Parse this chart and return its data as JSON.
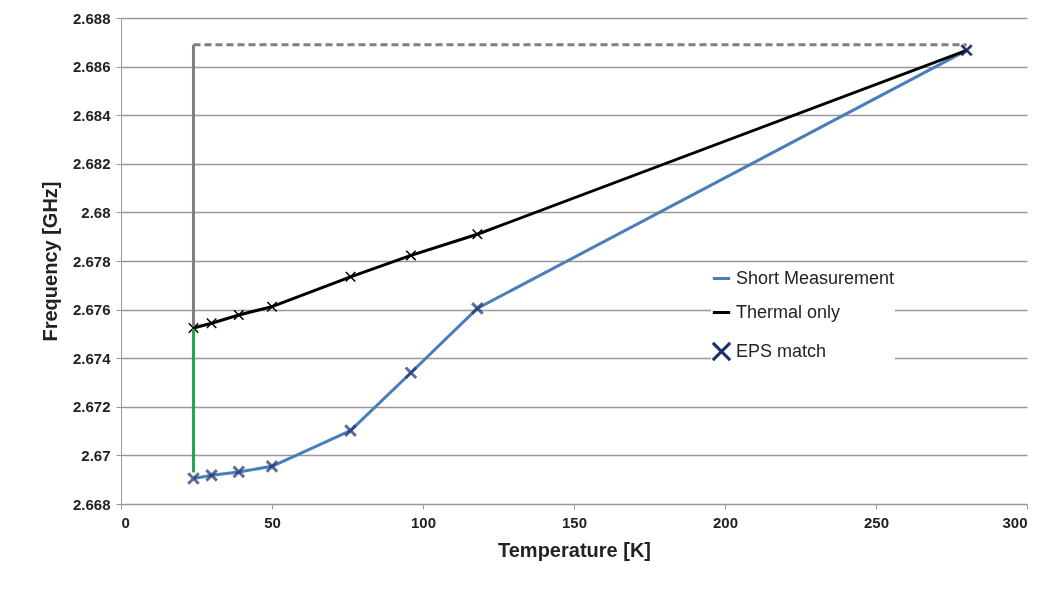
{
  "chart_data": {
    "type": "line",
    "xlabel": "Temperature [K]",
    "ylabel": "Frequency [GHz]",
    "xlim": [
      0,
      300
    ],
    "xticks": [
      0,
      50,
      100,
      150,
      200,
      250,
      300
    ],
    "ylim": [
      2.668,
      2.688
    ],
    "yticks": [
      2.668,
      2.67,
      2.672,
      2.674,
      2.676,
      2.678,
      2.68,
      2.682,
      2.684,
      2.686,
      2.688
    ],
    "grid": "y",
    "legend": "right",
    "series": [
      {
        "name": "Short Measurement",
        "color": "#4a7ebb",
        "marker": "none",
        "x": [
          24,
          30,
          39,
          50,
          76,
          96,
          118,
          280
        ],
        "values": [
          2.66905,
          2.66918,
          2.66932,
          2.66955,
          2.67102,
          2.6734,
          2.67605,
          2.68667
        ]
      },
      {
        "name": "Thermal only",
        "color": "#000000",
        "marker": "cross",
        "x": [
          24,
          30,
          39,
          50,
          76,
          96,
          118,
          280
        ],
        "values": [
          2.67524,
          2.67544,
          2.67578,
          2.67612,
          2.67735,
          2.67823,
          2.6791,
          2.68667
        ]
      },
      {
        "name": "EPS match",
        "type": "scatter",
        "color": "#1f2f6e",
        "marker": "cross",
        "x": [
          24,
          30,
          39,
          50,
          76,
          96,
          118,
          280
        ],
        "values": [
          2.66905,
          2.66918,
          2.66932,
          2.66955,
          2.67102,
          2.6734,
          2.67605,
          2.68667
        ]
      },
      {
        "color": "#808080",
        "line_style": "dashed",
        "x": [
          280,
          24
        ],
        "values": [
          2.6869,
          2.6869
        ]
      },
      {
        "color": "#808080",
        "line_style": "solid",
        "x": [
          24,
          24
        ],
        "values": [
          2.6869,
          2.6753
        ]
      },
      {
        "color": "#1fa84f",
        "line_style": "solid",
        "x": [
          24,
          24
        ],
        "values": [
          2.6752,
          2.6693
        ]
      }
    ]
  }
}
